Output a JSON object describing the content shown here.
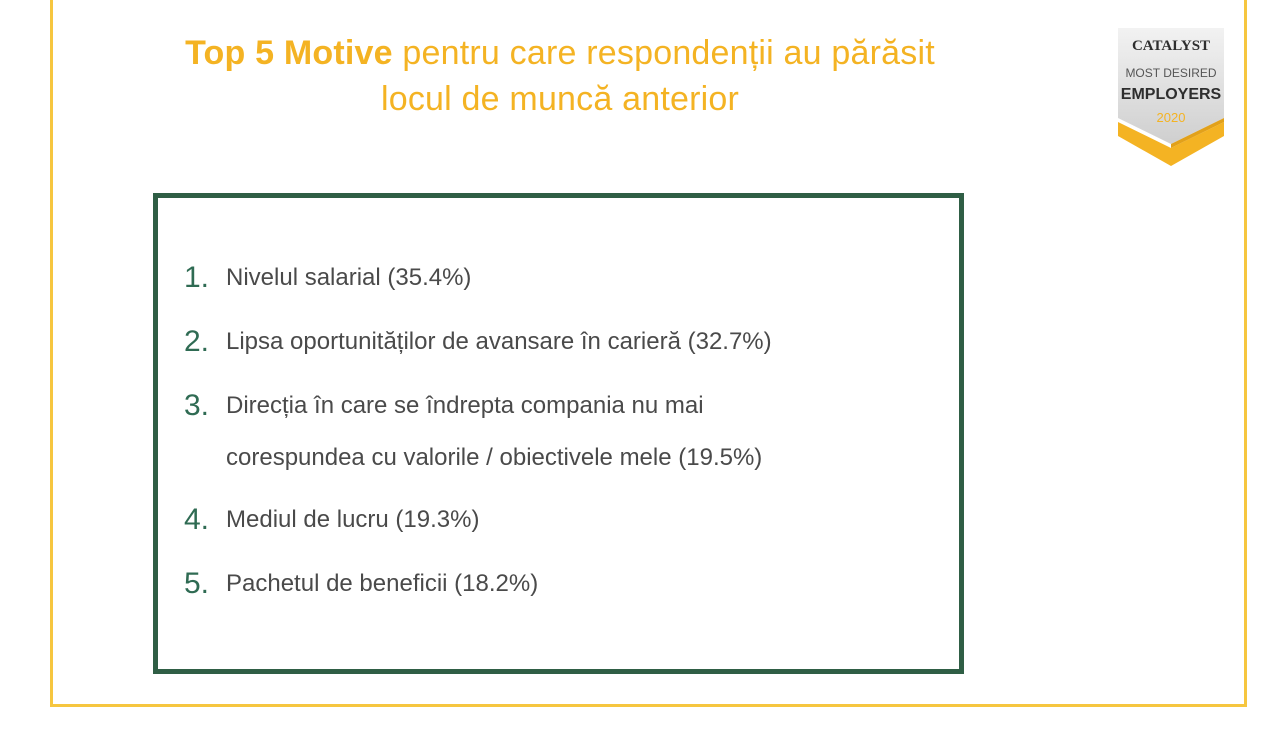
{
  "title": {
    "bold": "Top 5 Motive",
    "rest_line1": " pentru care respondenții au părăsit",
    "line2": "locul de muncă anterior"
  },
  "badge": {
    "brand": "CATALYST",
    "line1": "MOST DESIRED",
    "line2": "EMPLOYERS",
    "year": "2020",
    "colors": {
      "accent": "#f4b323",
      "dark": "#2e2e2e",
      "silver": "#dcdcdc"
    }
  },
  "list": {
    "items": [
      {
        "num": "1.",
        "text": "Nivelul salarial (35.4%)"
      },
      {
        "num": "2.",
        "text": "Lipsa oportunităților de avansare în carieră (32.7%)"
      },
      {
        "num": "3.",
        "text": "Direcția în care se îndrepta compania nu mai",
        "text2": "corespundea cu valorile / obiectivele mele (19.5%)"
      },
      {
        "num": "4.",
        "text": "Mediul de lucru (19.3%)"
      },
      {
        "num": "5.",
        "text": "Pachetul de beneficii (18.2%)"
      }
    ]
  },
  "colors": {
    "frame": "#f6c63f",
    "title": "#f4b323",
    "box_border": "#2f5e45",
    "number": "#2f6b53",
    "text": "#4a4a4a"
  }
}
